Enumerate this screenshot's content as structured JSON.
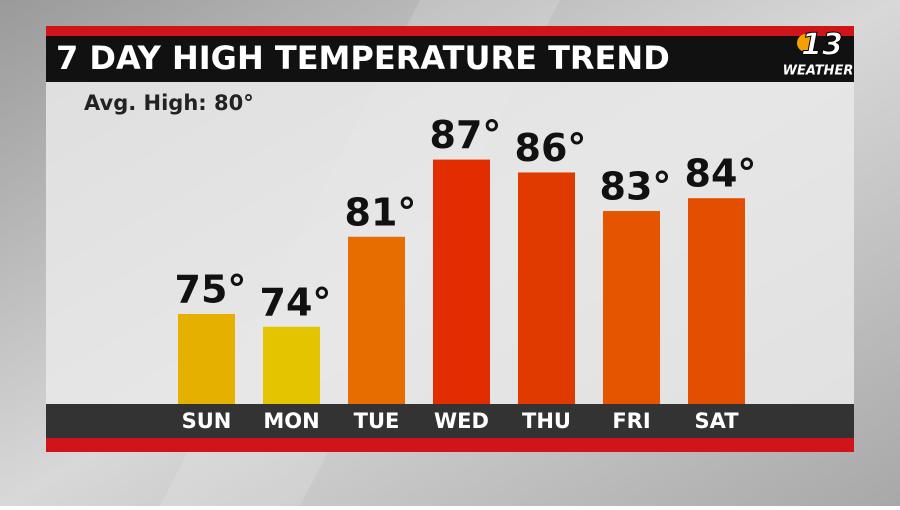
{
  "chart_data": {
    "type": "bar",
    "title": "7 DAY HIGH TEMPERATURE TREND",
    "subtitle": "Avg. High: 80°",
    "categories": [
      "SUN",
      "MON",
      "TUE",
      "WED",
      "THU",
      "FRI",
      "SAT"
    ],
    "values": [
      75,
      74,
      81,
      87,
      86,
      83,
      84
    ],
    "value_labels": [
      "75°",
      "74°",
      "81°",
      "87°",
      "86°",
      "83°",
      "84°"
    ],
    "colors": [
      "#e6b000",
      "#e4c300",
      "#e86d00",
      "#e22d00",
      "#e03a00",
      "#e55500",
      "#e44e00"
    ],
    "ylim": [
      68,
      90
    ]
  },
  "branding": {
    "channel": "13",
    "label": "WEATHER"
  }
}
